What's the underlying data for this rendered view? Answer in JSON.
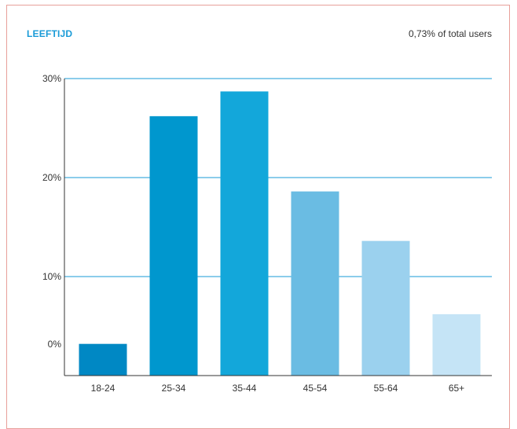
{
  "header": {
    "title": "LEEFTIJD",
    "subtitle": "0,73% of total users"
  },
  "colors": {
    "title": "#1a9bd7",
    "gridline": "#1a9bd7",
    "axis": "#333333",
    "frame": "#e8a09a",
    "bars": [
      "#0088c4",
      "#0097ce",
      "#13a7da",
      "#6abce3",
      "#9bd1ee",
      "#c5e4f6"
    ]
  },
  "chart_data": {
    "type": "bar",
    "title": "LEEFTIJD",
    "subtitle": "0,73% of total users",
    "categories": [
      "18-24",
      "25-34",
      "35-44",
      "45-54",
      "55-64",
      "65+"
    ],
    "values": [
      3.2,
      26.2,
      28.7,
      18.6,
      13.6,
      6.2
    ],
    "ylim": [
      0,
      30
    ],
    "yticks": [
      0,
      10,
      20,
      30
    ],
    "ytick_labels": [
      "0%",
      "10%",
      "20%",
      "30%"
    ],
    "xlabel": "",
    "ylabel": "",
    "grid": true,
    "legend": "none"
  }
}
